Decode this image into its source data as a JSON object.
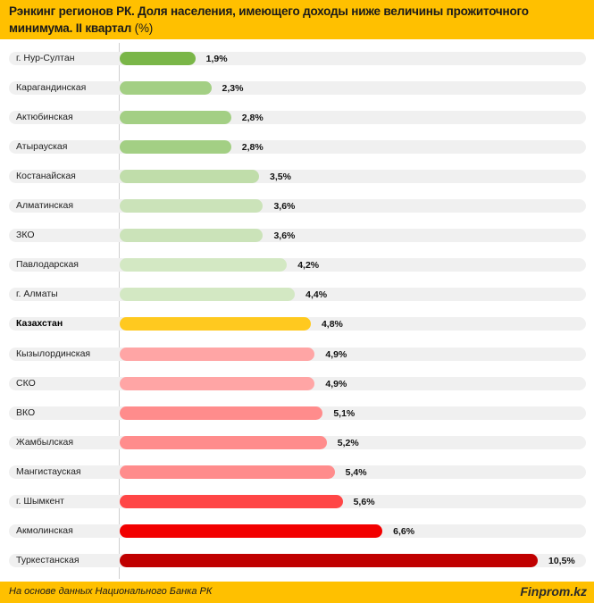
{
  "header": {
    "title": "Рэнкинг регионов РК. Доля населения, имеющего доходы ниже величины прожиточного минимума. II квартал",
    "unit": "(%)"
  },
  "footer": {
    "source": "На основе данных Национального Банка РК",
    "brand": "Finprom.kz"
  },
  "chart_data": {
    "type": "bar",
    "orientation": "horizontal",
    "title": "Рэнкинг регионов РК. Доля населения, имеющего доходы ниже величины прожиточного минимума. II квартал (%)",
    "xlabel": "",
    "ylabel": "",
    "xlim": [
      0,
      10.5
    ],
    "grid": false,
    "legend": "none",
    "categories": [
      "г. Нур-Султан",
      "Карагандинская",
      "Актюбинская",
      "Атырауская",
      "Костанайская",
      "Алматинская",
      "ЗКО",
      "Павлодарская",
      "г. Алматы",
      "Казахстан",
      "Кызылординская",
      "СКО",
      "ВКО",
      "Жамбылская",
      "Мангистауская",
      "г. Шымкент",
      "Акмолинская",
      "Туркестанская"
    ],
    "values": [
      1.9,
      2.3,
      2.8,
      2.8,
      3.5,
      3.6,
      3.6,
      4.2,
      4.4,
      4.8,
      4.9,
      4.9,
      5.1,
      5.2,
      5.4,
      5.6,
      6.6,
      10.5
    ],
    "labels": [
      "1,9%",
      "2,3%",
      "2,8%",
      "2,8%",
      "3,5%",
      "3,6%",
      "3,6%",
      "4,2%",
      "4,4%",
      "4,8%",
      "4,9%",
      "4,9%",
      "5,1%",
      "5,2%",
      "5,4%",
      "5,6%",
      "6,6%",
      "10,5%"
    ],
    "colors": [
      "#7AB648",
      "#A3CF84",
      "#A3CF84",
      "#A3CF84",
      "#C0DDAA",
      "#CBE3B9",
      "#CBE3B9",
      "#D3E8C3",
      "#D3E8C3",
      "#FFC91F",
      "#FFA5A5",
      "#FFA5A5",
      "#FF8C8C",
      "#FF8C8C",
      "#FF8C8C",
      "#FF4646",
      "#F20000",
      "#C00000"
    ],
    "highlight": "Казахстан"
  }
}
